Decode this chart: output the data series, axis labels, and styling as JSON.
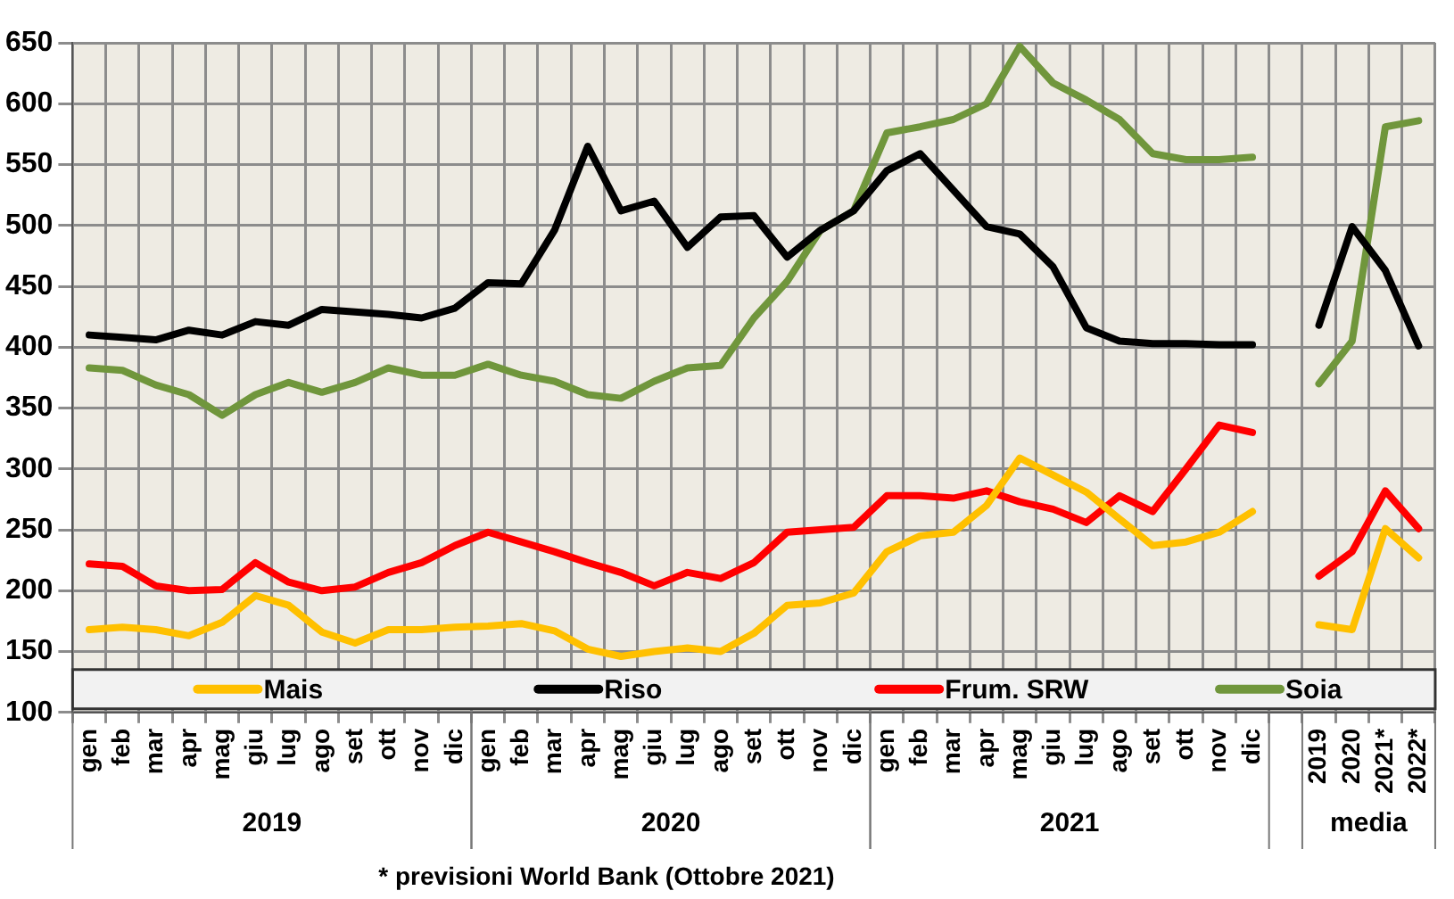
{
  "chart_data": {
    "type": "line",
    "categories": [
      "gen",
      "feb",
      "mar",
      "apr",
      "mag",
      "giu",
      "lug",
      "ago",
      "set",
      "ott",
      "nov",
      "dic",
      "gen",
      "feb",
      "mar",
      "apr",
      "mag",
      "giu",
      "lug",
      "ago",
      "set",
      "ott",
      "nov",
      "dic",
      "gen",
      "feb",
      "mar",
      "apr",
      "mag",
      "giu",
      "lug",
      "ago",
      "set",
      "ott",
      "nov",
      "dic",
      null,
      "2019",
      "2020",
      "2021*",
      "2022*"
    ],
    "series": [
      {
        "name": "Mais",
        "color": "#ffc000",
        "values": [
          168,
          170,
          168,
          163,
          174,
          196,
          188,
          166,
          157,
          168,
          168,
          170,
          171,
          173,
          167,
          152,
          146,
          150,
          153,
          150,
          165,
          188,
          190,
          198,
          232,
          245,
          248,
          270,
          309,
          295,
          281,
          259,
          237,
          240,
          248,
          265,
          null,
          172,
          168,
          251,
          227
        ]
      },
      {
        "name": "Riso",
        "color": "#000000",
        "values": [
          410,
          408,
          406,
          414,
          410,
          421,
          418,
          431,
          429,
          427,
          424,
          432,
          453,
          452,
          496,
          565,
          512,
          520,
          482,
          507,
          508,
          474,
          496,
          512,
          545,
          559,
          529,
          499,
          493,
          466,
          416,
          405,
          403,
          403,
          402,
          402,
          null,
          418,
          499,
          463,
          401
        ]
      },
      {
        "name": "Frum. SRW",
        "color": "#ff0000",
        "values": [
          222,
          220,
          204,
          200,
          201,
          223,
          207,
          200,
          203,
          215,
          223,
          237,
          248,
          240,
          232,
          223,
          215,
          204,
          215,
          210,
          223,
          248,
          250,
          252,
          278,
          278,
          276,
          282,
          273,
          267,
          256,
          278,
          265,
          300,
          336,
          330,
          null,
          212,
          232,
          282,
          251
        ]
      },
      {
        "name": "Soia",
        "color": "#70963c",
        "values": [
          383,
          381,
          369,
          361,
          344,
          361,
          371,
          363,
          371,
          383,
          377,
          377,
          386,
          377,
          372,
          361,
          358,
          372,
          383,
          385,
          424,
          454,
          496,
          512,
          576,
          581,
          587,
          600,
          647,
          617,
          603,
          587,
          559,
          554,
          554,
          556,
          null,
          370,
          405,
          581,
          586
        ]
      }
    ],
    "ylim": [
      100,
      650
    ],
    "yticks": [
      100,
      150,
      200,
      250,
      300,
      350,
      400,
      450,
      500,
      550,
      600,
      650
    ],
    "grid": true,
    "legend": "bottom",
    "marker": "none",
    "line_style": "solid",
    "annotations": [
      "2019",
      "2020",
      "2021",
      "media",
      "* previsioni World Bank (Ottobre 2021)"
    ]
  }
}
